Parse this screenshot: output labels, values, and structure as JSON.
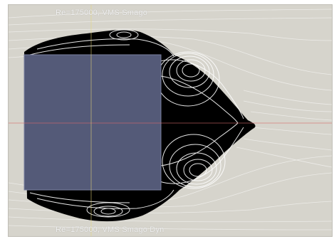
{
  "labels": {
    "top": "Re=175000, VMS Smago",
    "bottom": "Re=175000, VMS Smago Dyn"
  },
  "colors": {
    "background": "#d6d4cc",
    "obstacle": "#545a78",
    "wake": "#000000",
    "streamline": "#ffffff",
    "centerline": "#d86a6a",
    "verticalLine": "#e8d87a"
  }
}
